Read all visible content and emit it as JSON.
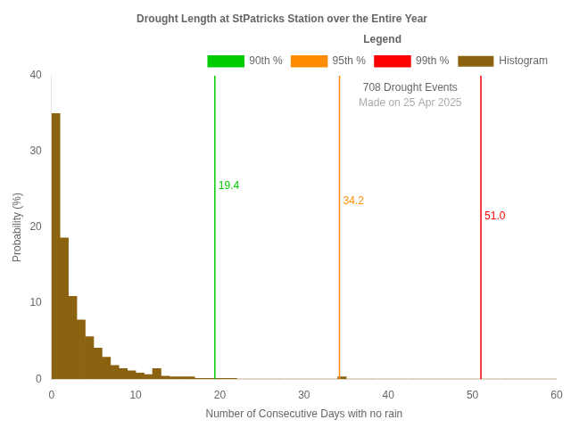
{
  "chart_data": {
    "type": "histogram",
    "title": "Drought Length at StPatricks Station over the Entire Year",
    "xlabel": "Number of Consecutive Days with no rain",
    "ylabel": "Probability (%)",
    "name": "Histogram",
    "color": "#8B6310",
    "bins": [
      0,
      1,
      2,
      3,
      4,
      5,
      6,
      7,
      8,
      9,
      10,
      11,
      12,
      13,
      14,
      15,
      16,
      17,
      18,
      19,
      20,
      21,
      22,
      23,
      24,
      25,
      26,
      27,
      28,
      29,
      30,
      31,
      32,
      33,
      34,
      35,
      36,
      37,
      38,
      39,
      40,
      41,
      42,
      43,
      44,
      45,
      46,
      47,
      48,
      49,
      50,
      51,
      52,
      53,
      54,
      55,
      56,
      57,
      58,
      59,
      60
    ],
    "values": [
      35.0,
      18.6,
      10.9,
      7.8,
      5.6,
      4.1,
      2.9,
      1.8,
      1.4,
      1.1,
      0.8,
      0.6,
      1.4,
      0.4,
      0.3,
      0.3,
      0.3,
      0.1,
      0.1,
      0.1,
      0.1,
      0.1,
      0.0,
      0.0,
      0.0,
      0.0,
      0.0,
      0.0,
      0.0,
      0.0,
      0.0,
      0.0,
      0.0,
      0.0,
      0.3,
      0.0,
      0.0,
      0.0,
      0.0,
      0.0,
      0.0,
      0.0,
      0.0,
      0.0,
      0.0,
      0.0,
      0.0,
      0.0,
      0.0,
      0.0,
      0.0,
      0.0,
      0.0,
      0.0,
      0.0,
      0.0,
      0.0,
      0.0,
      0.0,
      0.0
    ],
    "xlim": [
      0,
      60
    ],
    "ylim": [
      0,
      40
    ],
    "xticks": [
      0,
      10,
      20,
      30,
      40,
      50,
      60
    ],
    "yticks": [
      0,
      10,
      20,
      30,
      40
    ],
    "grid": false,
    "legend": "upper right",
    "legend_title": "Legend",
    "vlines": [
      {
        "name": "90th %",
        "x": 19.4,
        "color": "#00CC00",
        "label": "19.4",
        "label_y": 25.5
      },
      {
        "name": "95th %",
        "x": 34.2,
        "color": "#FF8C00",
        "label": "34.2",
        "label_y": 23.5
      },
      {
        "name": "99th %",
        "x": 51.0,
        "color": "#FF0000",
        "label": "51.0",
        "label_y": 21.5
      }
    ],
    "annotations": [
      {
        "text": "708 Drought Events"
      },
      {
        "text": "Made on 25 Apr 2025",
        "color": "#AAAAAA"
      }
    ]
  }
}
